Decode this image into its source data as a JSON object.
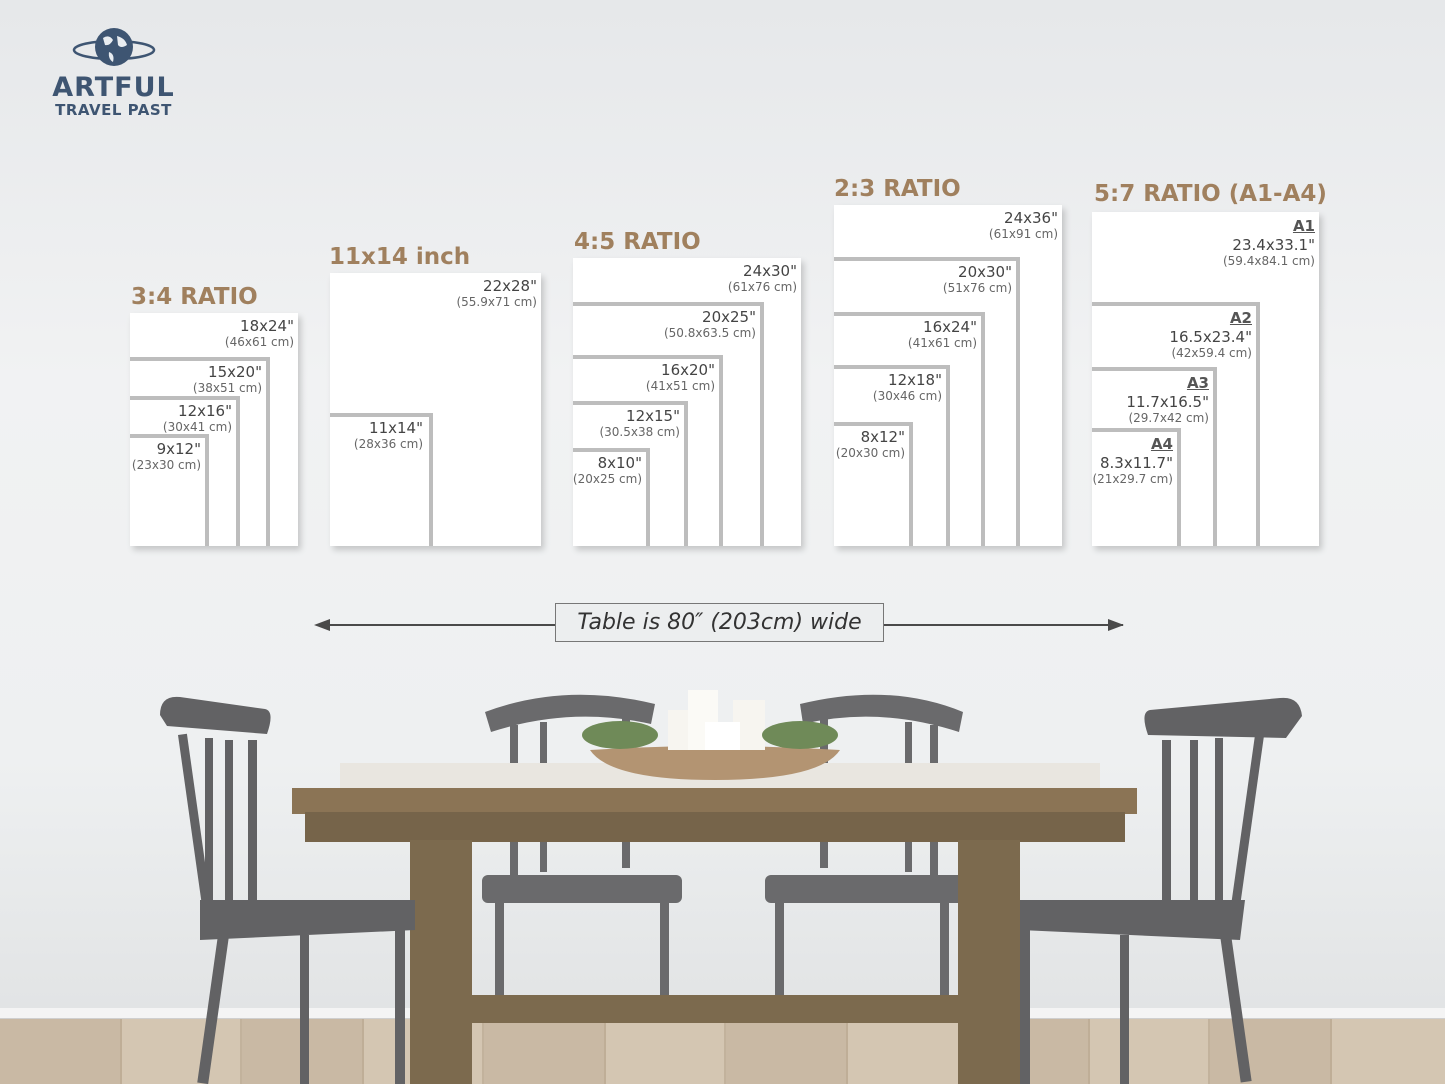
{
  "logo": {
    "line1": "ARTFUL",
    "line2": "TRAVEL PAST",
    "icon": "globe-icon",
    "color": "#3e5572"
  },
  "heading_color": "#a0805e",
  "groups": [
    {
      "heading": "3:4 RATIO",
      "sizes": [
        {
          "inch": "18x24\"",
          "cm": "(46x61 cm)"
        },
        {
          "inch": "15x20\"",
          "cm": "(38x51 cm)"
        },
        {
          "inch": "12x16\"",
          "cm": "(30x41 cm)"
        },
        {
          "inch": "9x12\"",
          "cm": "(23x30 cm)"
        }
      ]
    },
    {
      "heading": "11x14 inch",
      "sizes": [
        {
          "inch": "22x28\"",
          "cm": "(55.9x71 cm)"
        },
        {
          "inch": "11x14\"",
          "cm": "(28x36 cm)"
        }
      ]
    },
    {
      "heading": "4:5 RATIO",
      "sizes": [
        {
          "inch": "24x30\"",
          "cm": "(61x76 cm)"
        },
        {
          "inch": "20x25\"",
          "cm": "(50.8x63.5 cm)"
        },
        {
          "inch": "16x20\"",
          "cm": "(41x51 cm)"
        },
        {
          "inch": "12x15\"",
          "cm": "(30.5x38 cm)"
        },
        {
          "inch": "8x10\"",
          "cm": "(20x25 cm)"
        }
      ]
    },
    {
      "heading": "2:3 RATIO",
      "sizes": [
        {
          "inch": "24x36\"",
          "cm": "(61x91 cm)"
        },
        {
          "inch": "20x30\"",
          "cm": "(51x76 cm)"
        },
        {
          "inch": "16x24\"",
          "cm": "(41x61 cm)"
        },
        {
          "inch": "12x18\"",
          "cm": "(30x46 cm)"
        },
        {
          "inch": "8x12\"",
          "cm": "(20x30 cm)"
        }
      ]
    },
    {
      "heading": "5:7 RATIO (A1-A4)",
      "sizes": [
        {
          "code": "A1",
          "inch": "23.4x33.1\"",
          "cm": "(59.4x84.1 cm)"
        },
        {
          "code": "A2",
          "inch": "16.5x23.4\"",
          "cm": "(42x59.4 cm)"
        },
        {
          "code": "A3",
          "inch": "11.7x16.5\"",
          "cm": "(29.7x42 cm)"
        },
        {
          "code": "A4",
          "inch": "8.3x11.7\"",
          "cm": "(21x29.7 cm)"
        }
      ]
    }
  ],
  "table_note": "Table is 80″ (203cm) wide"
}
